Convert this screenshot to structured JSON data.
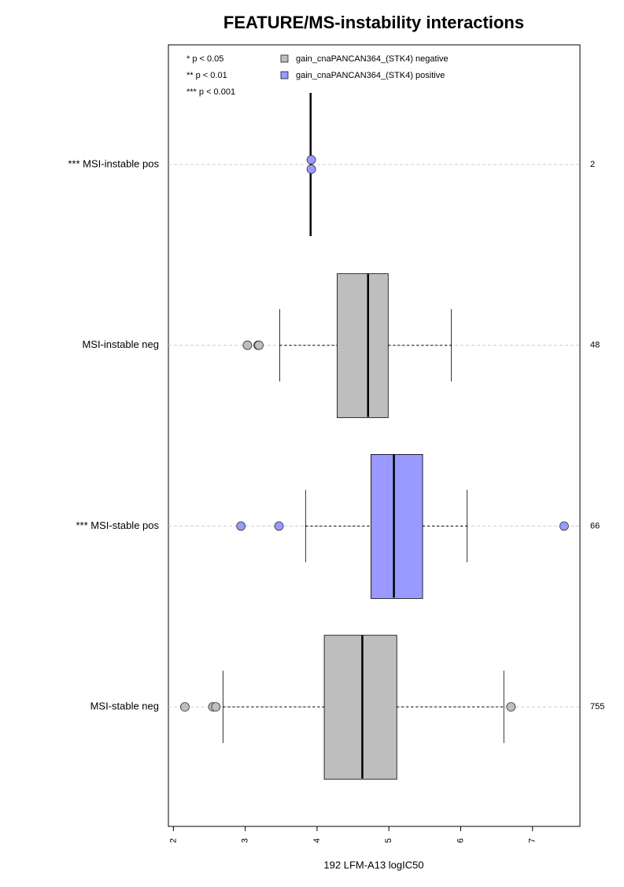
{
  "chart_data": {
    "type": "boxplot",
    "title": "FEATURE/MS-instability interactions",
    "x_label": "192 LFM-A13 logIC50",
    "xlim": [
      1.93,
      7.66
    ],
    "xticks": [
      2,
      3,
      4,
      5,
      6,
      7
    ],
    "notes": [
      "* p < 0.05",
      "** p < 0.01",
      "*** p < 0.001"
    ],
    "series": [
      {
        "name": "gain_cnaPANCAN364_(STK4) negative",
        "color": "#bebebe"
      },
      {
        "name": "gain_cnaPANCAN364_(STK4) positive",
        "color": "#9999ff"
      }
    ],
    "groups": [
      {
        "name": "*** MSI-instable pos",
        "n": 2,
        "color": "#9999ff",
        "median": 3.91,
        "points": [
          3.92,
          3.92
        ]
      },
      {
        "name": "MSI-instable neg",
        "n": 48,
        "color": "#bebebe",
        "whisker_low": 3.48,
        "q1": 4.28,
        "median": 4.71,
        "q3": 4.99,
        "whisker_high": 5.87,
        "points": [
          3.03,
          3.18,
          3.19
        ]
      },
      {
        "name": "*** MSI-stable pos",
        "n": 66,
        "color": "#9999ff",
        "whisker_low": 3.84,
        "q1": 4.75,
        "median": 5.07,
        "q3": 5.47,
        "whisker_high": 6.09,
        "points": [
          2.94,
          3.47,
          7.44
        ]
      },
      {
        "name": "MSI-stable neg",
        "n": 755,
        "color": "#bebebe",
        "whisker_low": 2.69,
        "q1": 4.1,
        "median": 4.63,
        "q3": 5.11,
        "whisker_high": 6.6,
        "points": [
          2.16,
          2.55,
          2.59,
          6.7
        ]
      }
    ]
  }
}
